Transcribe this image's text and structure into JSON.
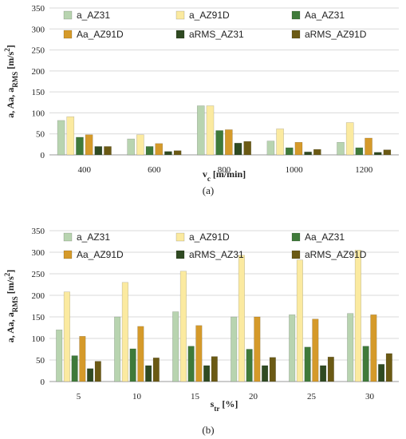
{
  "colors": {
    "a_AZ31": "#b8d4b0",
    "a_AZ91D": "#fbeaa0",
    "Aa_AZ31": "#3f7a3a",
    "Aa_AZ91D": "#d59a2a",
    "aRMS_AZ31": "#2f4a22",
    "aRMS_AZ91D": "#6b5a14"
  },
  "chart_data": [
    {
      "type": "bar",
      "caption": "(a)",
      "xlabel": {
        "main": "v",
        "sub": "c",
        "rest": " [m/min]"
      },
      "ylabel": {
        "main": "a, Aa, a",
        "sub": "RMS",
        "rest": " [m/s",
        "sup": "2",
        "end": "]"
      },
      "ylim": [
        0,
        350
      ],
      "yticks": [
        0,
        50,
        100,
        150,
        200,
        250,
        300,
        350
      ],
      "grid": true,
      "legend_position": "top",
      "categories": [
        "400",
        "600",
        "800",
        "1000",
        "1200"
      ],
      "series": [
        {
          "name": "a_AZ31",
          "values": [
            82,
            38,
            117,
            33,
            30
          ]
        },
        {
          "name": "a_AZ91D",
          "values": [
            91,
            48,
            117,
            62,
            77
          ]
        },
        {
          "name": "Aa_AZ31",
          "values": [
            42,
            20,
            58,
            17,
            17
          ]
        },
        {
          "name": "Aa_AZ91D",
          "values": [
            48,
            27,
            60,
            30,
            40
          ]
        },
        {
          "name": "aRMS_AZ31",
          "values": [
            20,
            8,
            28,
            7,
            6
          ]
        },
        {
          "name": "aRMS_AZ91D",
          "values": [
            20,
            10,
            32,
            13,
            12
          ]
        }
      ]
    },
    {
      "type": "bar",
      "caption": "(b)",
      "xlabel": {
        "main": "s",
        "sub": "tr",
        "rest": " [%]"
      },
      "ylabel": {
        "main": "a, Aa, a",
        "sub": "RMS",
        "rest": " [m/s",
        "sup": "2",
        "end": "]"
      },
      "ylim": [
        0,
        350
      ],
      "yticks": [
        0,
        50,
        100,
        150,
        200,
        250,
        300,
        350
      ],
      "grid": true,
      "legend_position": "top",
      "categories": [
        "5",
        "10",
        "15",
        "20",
        "25",
        "30"
      ],
      "series": [
        {
          "name": "a_AZ31",
          "values": [
            120,
            150,
            162,
            150,
            155,
            158
          ]
        },
        {
          "name": "a_AZ91D",
          "values": [
            208,
            230,
            256,
            293,
            282,
            305
          ]
        },
        {
          "name": "Aa_AZ31",
          "values": [
            60,
            76,
            82,
            75,
            80,
            82
          ]
        },
        {
          "name": "Aa_AZ91D",
          "values": [
            105,
            128,
            130,
            150,
            145,
            155
          ]
        },
        {
          "name": "aRMS_AZ31",
          "values": [
            30,
            37,
            37,
            37,
            37,
            40
          ]
        },
        {
          "name": "aRMS_AZ91D",
          "values": [
            47,
            55,
            58,
            56,
            57,
            65
          ]
        }
      ]
    }
  ]
}
